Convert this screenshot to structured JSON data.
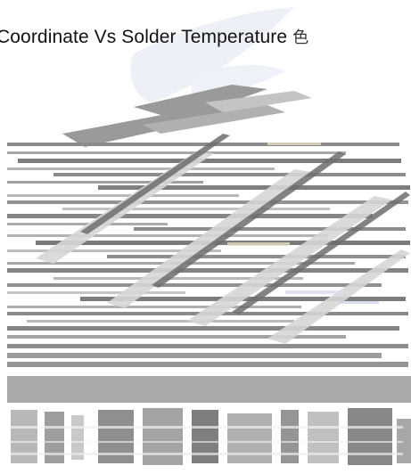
{
  "title": {
    "text": "Coordinate Vs Solder Temperature",
    "glyph": "色"
  }
}
